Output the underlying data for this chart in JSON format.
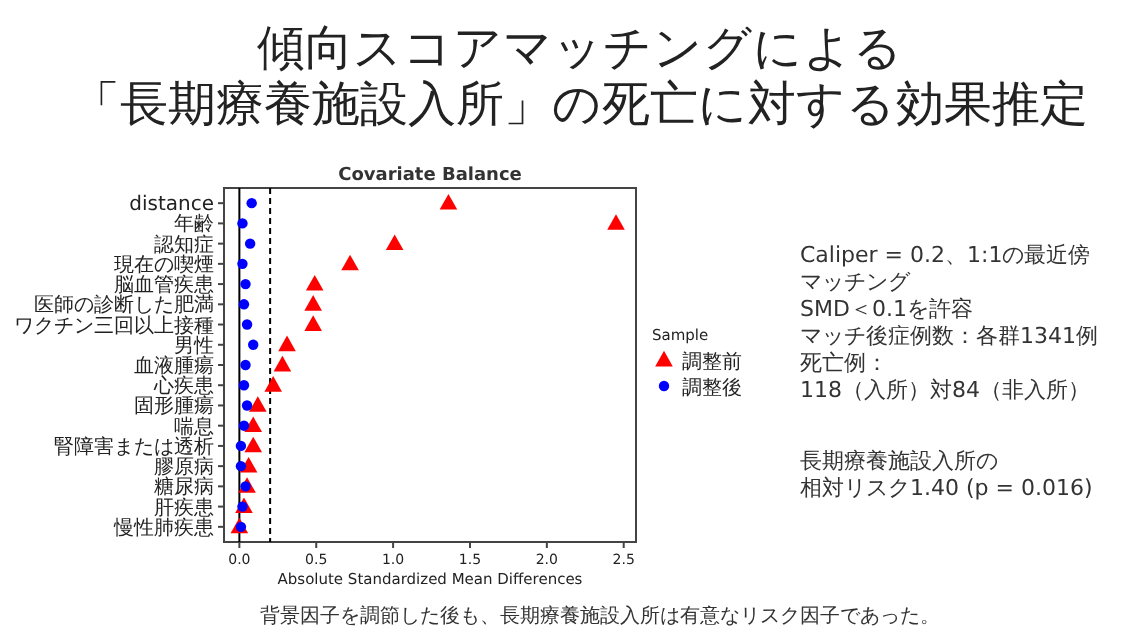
{
  "chart_data": {
    "type": "scatter",
    "orientation": "horizontal",
    "title": "傾向スコアマッチングによる",
    "subtitle": "「長期療養施設入所」の死亡に対する効果推定",
    "categories": [
      "distance",
      "年齢",
      "認知症",
      "現在の喫煙",
      "脳血管疾患",
      "医師の診断した肥満",
      "ワクチン三回以上接種",
      "男性",
      "血液腫瘍",
      "心疾患",
      "固形腫瘍",
      "喘息",
      "腎障害または透析",
      "膠原病",
      "糖尿病",
      "肝疾患",
      "慢性肺疾患"
    ],
    "series": [
      {
        "name": "調整前",
        "color": "#ff0000",
        "marker": "triangle",
        "values": [
          1.36,
          2.45,
          1.01,
          0.72,
          0.49,
          0.48,
          0.48,
          0.31,
          0.28,
          0.22,
          0.12,
          0.09,
          0.09,
          0.06,
          0.05,
          0.03,
          0.0
        ]
      },
      {
        "name": "調整後",
        "color": "#0000ff",
        "marker": "circle",
        "values": [
          0.08,
          0.02,
          0.07,
          0.02,
          0.04,
          0.03,
          0.05,
          0.09,
          0.04,
          0.03,
          0.05,
          0.03,
          0.01,
          0.01,
          0.04,
          0.02,
          0.01
        ]
      }
    ],
    "xlim": [
      -0.1,
      2.58
    ],
    "xticks": [
      {
        "value": 0,
        "label": "0.0"
      },
      {
        "value": 0.5,
        "label": "0.5"
      },
      {
        "value": 1,
        "label": "1.0"
      },
      {
        "value": 1.5,
        "label": "1.5"
      },
      {
        "value": 2,
        "label": "2.0"
      },
      {
        "value": 2.5,
        "label": "2.5"
      }
    ],
    "xlabel": "Absolute Standardized Mean Differences",
    "ref_lines": [
      {
        "axis": "x",
        "value": 0,
        "line_style": "solid",
        "color": "#000000"
      },
      {
        "axis": "x",
        "value": 0.2,
        "line_style": "dashed",
        "color": "#000000"
      }
    ],
    "legend": "right",
    "legend_title": "Sample",
    "grid": false,
    "annotations": [
      "Covariate Balance",
      "Caliper = 0.2、1:1の最近傍",
      "マッチング",
      "SMD＜0.1を許容",
      "マッチ後症例数：各群1341例",
      "死亡例：",
      "118（入所）対84（非入所）",
      "長期療養施設入所の",
      "相対リスク1.40 (p = 0.016)",
      "背景因子を調節した後も、長期療養施設入所は有意なリスク因子であった。"
    ]
  }
}
